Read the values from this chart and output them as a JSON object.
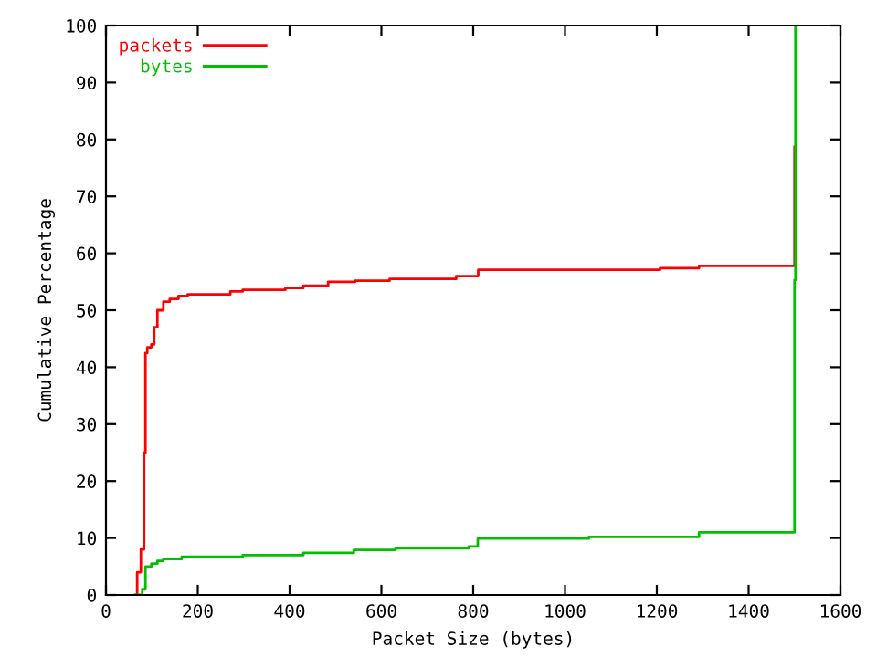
{
  "chart_data": {
    "type": "step",
    "xlabel": "Packet Size (bytes)",
    "ylabel": "Cumulative Percentage",
    "xlim": [
      0,
      1600
    ],
    "xticks": [
      0,
      200,
      400,
      600,
      800,
      1000,
      1200,
      1400,
      1600
    ],
    "ylim": [
      0,
      100
    ],
    "yticks": [
      0,
      10,
      20,
      30,
      40,
      50,
      60,
      70,
      80,
      90,
      100
    ],
    "grid": false,
    "legend": "top left",
    "series": [
      {
        "name": "packets",
        "color": "#ff0000",
        "x": [
          66,
          68,
          76,
          83,
          86,
          90,
          99,
          105,
          112,
          125,
          139,
          158,
          178,
          271,
          298,
          391,
          430,
          484,
          543,
          618,
          763,
          811,
          1207,
          1292,
          1500
        ],
        "values": [
          0,
          4,
          8,
          25,
          42.5,
          43.5,
          44,
          47,
          50,
          51.5,
          52,
          52.5,
          52.8,
          53.3,
          53.6,
          53.9,
          54.3,
          55.0,
          55.2,
          55.5,
          56.0,
          57.1,
          57.4,
          57.8,
          78.7
        ]
      },
      {
        "name": "bytes",
        "color": "#00c000",
        "x": [
          63,
          79,
          86,
          99,
          112,
          125,
          165,
          298,
          430,
          540,
          631,
          790,
          810,
          1052,
          1292,
          1500,
          1502
        ],
        "values": [
          0,
          1,
          5,
          5.5,
          6,
          6.3,
          6.7,
          7.0,
          7.4,
          7.9,
          8.2,
          8.5,
          9.9,
          10.2,
          11.0,
          55.3,
          100
        ]
      }
    ]
  }
}
